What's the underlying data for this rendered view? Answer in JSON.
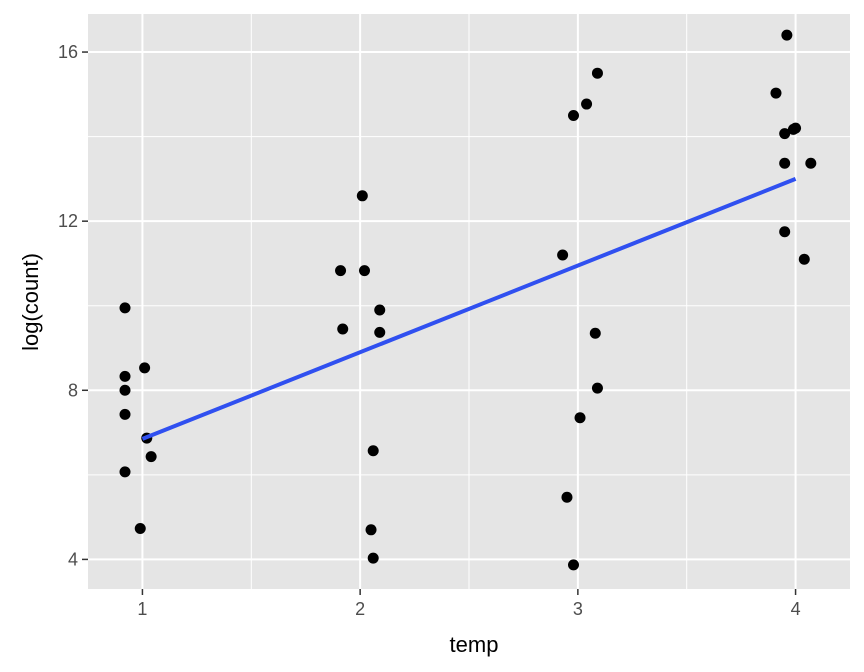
{
  "chart_data": {
    "type": "scatter",
    "xlabel": "temp",
    "ylabel": "log(count)",
    "xlim": [
      0.75,
      4.25
    ],
    "ylim": [
      3.3,
      16.9
    ],
    "x_ticks": [
      1,
      2,
      3,
      4
    ],
    "x_tick_labels": [
      "1",
      "2",
      "3",
      "4"
    ],
    "y_ticks": [
      4,
      8,
      12,
      16
    ],
    "y_tick_labels": [
      "4",
      "8",
      "12",
      "16"
    ],
    "grid": true,
    "legend": "none",
    "colors": {
      "panel": "#e5e5e5",
      "grid": "#ffffff",
      "points": "#000000",
      "line": "#3050f0"
    },
    "points": [
      {
        "x": 0.92,
        "y": 9.95
      },
      {
        "x": 0.92,
        "y": 8.33
      },
      {
        "x": 0.92,
        "y": 8.0
      },
      {
        "x": 0.92,
        "y": 7.43
      },
      {
        "x": 0.92,
        "y": 6.07
      },
      {
        "x": 1.01,
        "y": 8.53
      },
      {
        "x": 1.02,
        "y": 6.87
      },
      {
        "x": 1.04,
        "y": 6.43
      },
      {
        "x": 0.99,
        "y": 4.73
      },
      {
        "x": 1.91,
        "y": 10.83
      },
      {
        "x": 1.92,
        "y": 9.45
      },
      {
        "x": 2.01,
        "y": 12.6
      },
      {
        "x": 2.02,
        "y": 10.83
      },
      {
        "x": 2.09,
        "y": 9.9
      },
      {
        "x": 2.09,
        "y": 9.37
      },
      {
        "x": 2.06,
        "y": 6.57
      },
      {
        "x": 2.05,
        "y": 4.7
      },
      {
        "x": 2.06,
        "y": 4.03
      },
      {
        "x": 2.93,
        "y": 11.2
      },
      {
        "x": 2.98,
        "y": 14.5
      },
      {
        "x": 3.04,
        "y": 14.77
      },
      {
        "x": 3.09,
        "y": 15.5
      },
      {
        "x": 3.08,
        "y": 9.35
      },
      {
        "x": 3.09,
        "y": 8.05
      },
      {
        "x": 3.01,
        "y": 7.35
      },
      {
        "x": 2.95,
        "y": 5.47
      },
      {
        "x": 2.98,
        "y": 3.87
      },
      {
        "x": 3.96,
        "y": 16.4
      },
      {
        "x": 3.91,
        "y": 15.03
      },
      {
        "x": 3.95,
        "y": 14.07
      },
      {
        "x": 4.0,
        "y": 14.2
      },
      {
        "x": 3.99,
        "y": 14.17
      },
      {
        "x": 3.95,
        "y": 13.37
      },
      {
        "x": 4.07,
        "y": 13.37
      },
      {
        "x": 3.95,
        "y": 11.75
      },
      {
        "x": 4.04,
        "y": 11.1
      }
    ],
    "fit_line": {
      "x": [
        1,
        4
      ],
      "y": [
        6.85,
        13.0
      ]
    }
  }
}
